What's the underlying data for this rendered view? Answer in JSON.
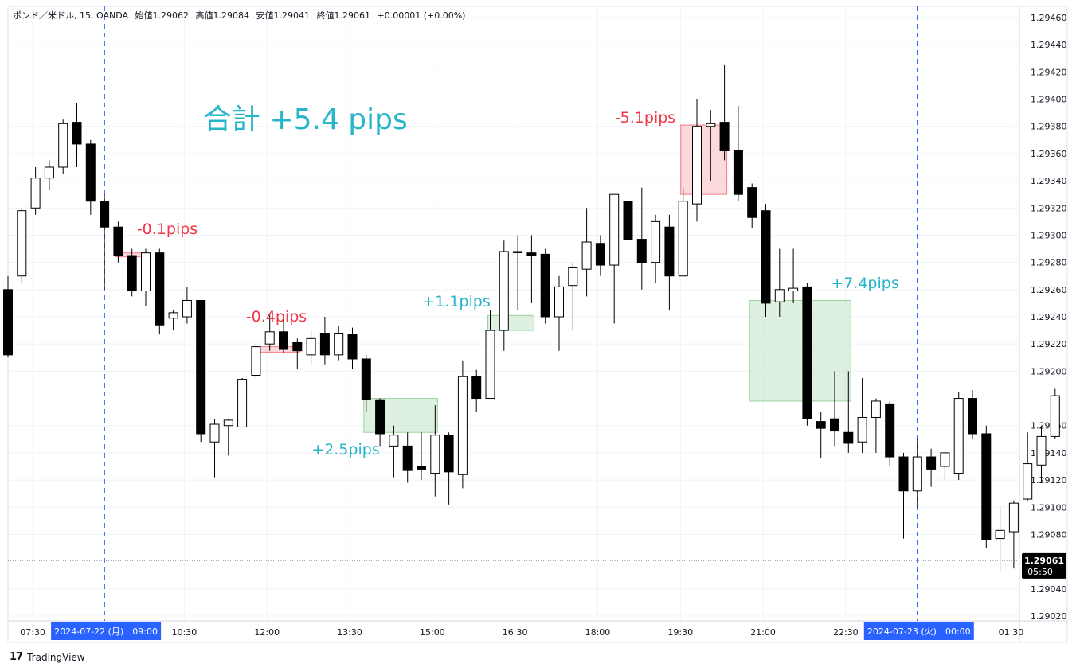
{
  "legend": {
    "symbol": "ポンド／米ドル, 15, OANDA",
    "open": "始値1.29062",
    "high": "高値1.29084",
    "low": "安値1.29041",
    "close": "終値1.29061",
    "change": "+0.00001 (+0.00%)"
  },
  "brand": {
    "name": "TradingView",
    "logo_icon": "tradingview-logo-icon"
  },
  "colors": {
    "bull_fill": "#ffffff",
    "bear_fill": "#000000",
    "win": "#26b5c9",
    "loss": "#f23645",
    "win_box": "#c8e6c9",
    "loss_box": "#f8b9c0",
    "session_line": "#2962ff",
    "axis_badge": "#2962ff"
  },
  "chart_data": {
    "type": "candlestick",
    "title": "",
    "y_ticks": [
      "1.29460",
      "1.29440",
      "1.29420",
      "1.29400",
      "1.29380",
      "1.29360",
      "1.29340",
      "1.29320",
      "1.29300",
      "1.29280",
      "1.29260",
      "1.29240",
      "1.29220",
      "1.29200",
      "1.29160",
      "1.29140",
      "1.29120",
      "1.29100",
      "1.29080",
      "1.29040",
      "1.29020"
    ],
    "y_range": [
      1.2901,
      1.2947
    ],
    "x_ticks": [
      "07:30",
      "10:30",
      "12:00",
      "13:30",
      "15:00",
      "16:30",
      "18:00",
      "19:30",
      "21:00",
      "22:30",
      "01:30"
    ],
    "x_badges": [
      "2024-07-22 (月)　09:00",
      "2024-07-23 (火)　00:00"
    ],
    "price_label": {
      "price": "1.29061",
      "countdown": "05:50",
      "value": 1.29061
    },
    "total_label": "合計 +5.4 pips",
    "trade_labels": [
      "-0.1pips",
      "-0.4pips",
      "+2.5pips",
      "+1.1pips",
      "-5.1pips",
      "+7.4pips"
    ],
    "trades": [
      {
        "result": "loss",
        "label_index": 0,
        "from_bar": 8,
        "to_bar": 10,
        "entry": 1.29287,
        "exit": 1.29286
      },
      {
        "result": "loss",
        "label_index": 1,
        "from_bar": 18,
        "to_bar": 21,
        "entry": 1.29218,
        "exit": 1.29214
      },
      {
        "result": "win",
        "label_index": 2,
        "from_bar": 26,
        "to_bar": 31,
        "entry": 1.2918,
        "exit": 1.29155
      },
      {
        "result": "win",
        "label_index": 3,
        "from_bar": 35,
        "to_bar": 38,
        "entry": 1.29241,
        "exit": 1.2923
      },
      {
        "result": "loss",
        "label_index": 4,
        "from_bar": 49,
        "to_bar": 52,
        "entry": 1.2933,
        "exit": 1.29381
      },
      {
        "result": "win",
        "label_index": 5,
        "from_bar": 54,
        "to_bar": 61,
        "entry": 1.29252,
        "exit": 1.29178
      }
    ],
    "candles": [
      {
        "o": 1.2926,
        "h": 1.2927,
        "l": 1.2921,
        "c": 1.29212
      },
      {
        "o": 1.2927,
        "h": 1.2932,
        "l": 1.29265,
        "c": 1.29318
      },
      {
        "o": 1.2932,
        "h": 1.2935,
        "l": 1.29315,
        "c": 1.29342
      },
      {
        "o": 1.29342,
        "h": 1.29355,
        "l": 1.29333,
        "c": 1.2935
      },
      {
        "o": 1.2935,
        "h": 1.29385,
        "l": 1.29345,
        "c": 1.29382
      },
      {
        "o": 1.29383,
        "h": 1.29397,
        "l": 1.2935,
        "c": 1.29367
      },
      {
        "o": 1.29367,
        "h": 1.2937,
        "l": 1.29315,
        "c": 1.29325
      },
      {
        "o": 1.29325,
        "h": 1.2933,
        "l": 1.2926,
        "c": 1.29306
      },
      {
        "o": 1.29306,
        "h": 1.2931,
        "l": 1.2928,
        "c": 1.29285
      },
      {
        "o": 1.29285,
        "h": 1.2929,
        "l": 1.29255,
        "c": 1.29259
      },
      {
        "o": 1.29259,
        "h": 1.2929,
        "l": 1.29248,
        "c": 1.29287
      },
      {
        "o": 1.29287,
        "h": 1.2929,
        "l": 1.29227,
        "c": 1.29234
      },
      {
        "o": 1.29239,
        "h": 1.29245,
        "l": 1.2923,
        "c": 1.29243
      },
      {
        "o": 1.2924,
        "h": 1.29262,
        "l": 1.29235,
        "c": 1.29252
      },
      {
        "o": 1.29252,
        "h": 1.29252,
        "l": 1.29148,
        "c": 1.29154
      },
      {
        "o": 1.29148,
        "h": 1.29165,
        "l": 1.29122,
        "c": 1.29161
      },
      {
        "o": 1.2916,
        "h": 1.29165,
        "l": 1.29138,
        "c": 1.29164
      },
      {
        "o": 1.29159,
        "h": 1.29195,
        "l": 1.29159,
        "c": 1.29194
      },
      {
        "o": 1.29197,
        "h": 1.2922,
        "l": 1.29195,
        "c": 1.29218
      },
      {
        "o": 1.2922,
        "h": 1.29242,
        "l": 1.29215,
        "c": 1.29229
      },
      {
        "o": 1.29229,
        "h": 1.29238,
        "l": 1.29213,
        "c": 1.29216
      },
      {
        "o": 1.29221,
        "h": 1.29224,
        "l": 1.29202,
        "c": 1.29215
      },
      {
        "o": 1.29212,
        "h": 1.2923,
        "l": 1.29205,
        "c": 1.29224
      },
      {
        "o": 1.29228,
        "h": 1.2924,
        "l": 1.29205,
        "c": 1.29212
      },
      {
        "o": 1.29212,
        "h": 1.29233,
        "l": 1.29208,
        "c": 1.29228
      },
      {
        "o": 1.29227,
        "h": 1.29232,
        "l": 1.29202,
        "c": 1.29209
      },
      {
        "o": 1.29209,
        "h": 1.29212,
        "l": 1.2917,
        "c": 1.29179
      },
      {
        "o": 1.29179,
        "h": 1.2918,
        "l": 1.29145,
        "c": 1.29154
      },
      {
        "o": 1.29145,
        "h": 1.2916,
        "l": 1.29122,
        "c": 1.29153
      },
      {
        "o": 1.29145,
        "h": 1.29155,
        "l": 1.29118,
        "c": 1.29127
      },
      {
        "o": 1.2913,
        "h": 1.29155,
        "l": 1.2912,
        "c": 1.29128
      },
      {
        "o": 1.29125,
        "h": 1.29175,
        "l": 1.29108,
        "c": 1.29153
      },
      {
        "o": 1.29153,
        "h": 1.29155,
        "l": 1.29102,
        "c": 1.29126
      },
      {
        "o": 1.29124,
        "h": 1.29208,
        "l": 1.29114,
        "c": 1.29196
      },
      {
        "o": 1.29196,
        "h": 1.29201,
        "l": 1.2917,
        "c": 1.2918
      },
      {
        "o": 1.2918,
        "h": 1.29245,
        "l": 1.2918,
        "c": 1.2923
      },
      {
        "o": 1.2923,
        "h": 1.29296,
        "l": 1.29215,
        "c": 1.29288
      },
      {
        "o": 1.29288,
        "h": 1.293,
        "l": 1.29245,
        "c": 1.29288
      },
      {
        "o": 1.29287,
        "h": 1.293,
        "l": 1.2925,
        "c": 1.29285
      },
      {
        "o": 1.29286,
        "h": 1.2929,
        "l": 1.29235,
        "c": 1.2924
      },
      {
        "o": 1.2924,
        "h": 1.2927,
        "l": 1.29215,
        "c": 1.29262
      },
      {
        "o": 1.29263,
        "h": 1.2928,
        "l": 1.2923,
        "c": 1.29276
      },
      {
        "o": 1.29275,
        "h": 1.2932,
        "l": 1.29255,
        "c": 1.29295
      },
      {
        "o": 1.29294,
        "h": 1.293,
        "l": 1.2927,
        "c": 1.29278
      },
      {
        "o": 1.29278,
        "h": 1.2933,
        "l": 1.29235,
        "c": 1.2933
      },
      {
        "o": 1.29325,
        "h": 1.2934,
        "l": 1.29285,
        "c": 1.29297
      },
      {
        "o": 1.29297,
        "h": 1.29335,
        "l": 1.2926,
        "c": 1.2928
      },
      {
        "o": 1.2928,
        "h": 1.29315,
        "l": 1.29265,
        "c": 1.2931
      },
      {
        "o": 1.29306,
        "h": 1.29315,
        "l": 1.29245,
        "c": 1.2927
      },
      {
        "o": 1.2927,
        "h": 1.29335,
        "l": 1.2927,
        "c": 1.29325
      },
      {
        "o": 1.29323,
        "h": 1.294,
        "l": 1.2931,
        "c": 1.2938
      },
      {
        "o": 1.2938,
        "h": 1.29392,
        "l": 1.2934,
        "c": 1.29382
      },
      {
        "o": 1.29383,
        "h": 1.29425,
        "l": 1.29355,
        "c": 1.29362
      },
      {
        "o": 1.29362,
        "h": 1.29395,
        "l": 1.29325,
        "c": 1.2933
      },
      {
        "o": 1.29335,
        "h": 1.29338,
        "l": 1.29305,
        "c": 1.29313
      },
      {
        "o": 1.29318,
        "h": 1.29323,
        "l": 1.2924,
        "c": 1.2925
      },
      {
        "o": 1.29251,
        "h": 1.2929,
        "l": 1.2924,
        "c": 1.2926
      },
      {
        "o": 1.29259,
        "h": 1.2929,
        "l": 1.2925,
        "c": 1.29261
      },
      {
        "o": 1.29262,
        "h": 1.29265,
        "l": 1.2916,
        "c": 1.29165
      },
      {
        "o": 1.29163,
        "h": 1.2917,
        "l": 1.29136,
        "c": 1.29158
      },
      {
        "o": 1.29165,
        "h": 1.292,
        "l": 1.29145,
        "c": 1.29156
      },
      {
        "o": 1.29155,
        "h": 1.292,
        "l": 1.2914,
        "c": 1.29147
      },
      {
        "o": 1.29148,
        "h": 1.29195,
        "l": 1.2914,
        "c": 1.29166
      },
      {
        "o": 1.29166,
        "h": 1.2918,
        "l": 1.2914,
        "c": 1.29178
      },
      {
        "o": 1.29176,
        "h": 1.29178,
        "l": 1.2913,
        "c": 1.29137
      },
      {
        "o": 1.29137,
        "h": 1.2914,
        "l": 1.29077,
        "c": 1.29112
      },
      {
        "o": 1.29112,
        "h": 1.2915,
        "l": 1.291,
        "c": 1.29137
      },
      {
        "o": 1.29137,
        "h": 1.29143,
        "l": 1.29115,
        "c": 1.29128
      },
      {
        "o": 1.2913,
        "h": 1.2914,
        "l": 1.2912,
        "c": 1.2914
      },
      {
        "o": 1.29125,
        "h": 1.29185,
        "l": 1.2912,
        "c": 1.2918
      },
      {
        "o": 1.2918,
        "h": 1.29186,
        "l": 1.2915,
        "c": 1.29154
      },
      {
        "o": 1.29154,
        "h": 1.2916,
        "l": 1.2907,
        "c": 1.29076
      },
      {
        "o": 1.29077,
        "h": 1.291,
        "l": 1.29053,
        "c": 1.29083
      },
      {
        "o": 1.29082,
        "h": 1.29105,
        "l": 1.29055,
        "c": 1.29103
      },
      {
        "o": 1.29106,
        "h": 1.29155,
        "l": 1.29105,
        "c": 1.29132
      },
      {
        "o": 1.29131,
        "h": 1.2916,
        "l": 1.29118,
        "c": 1.29152
      },
      {
        "o": 1.29152,
        "h": 1.29187,
        "l": 1.2915,
        "c": 1.29182
      }
    ],
    "grid": true,
    "legend_position": "top-left"
  }
}
